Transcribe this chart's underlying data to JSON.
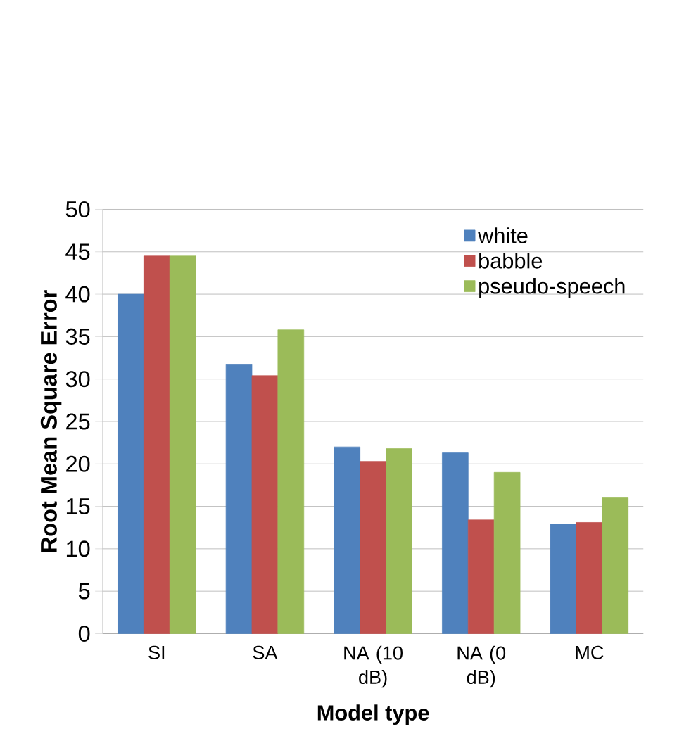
{
  "chart_data": {
    "type": "bar",
    "xlabel": "Model type",
    "ylabel": "Root Mean Square Error",
    "categories": [
      "SI",
      "SA",
      "NA (10 dB)",
      "NA (0 dB)",
      "MC"
    ],
    "series": [
      {
        "name": "white",
        "color": "#4f81bd",
        "values": [
          40,
          31.7,
          22.0,
          21.3,
          12.9
        ]
      },
      {
        "name": "babble",
        "color": "#c0504d",
        "values": [
          44.5,
          30.4,
          20.3,
          13.4,
          13.1
        ]
      },
      {
        "name": "pseudo-speech",
        "color": "#9bbb59",
        "values": [
          44.5,
          35.8,
          21.8,
          19.0,
          16.0
        ]
      }
    ],
    "ylim": [
      0,
      50
    ],
    "yticks": [
      0,
      5,
      10,
      15,
      20,
      25,
      30,
      35,
      40,
      45,
      50
    ],
    "grid": "y",
    "legend": "top right"
  }
}
